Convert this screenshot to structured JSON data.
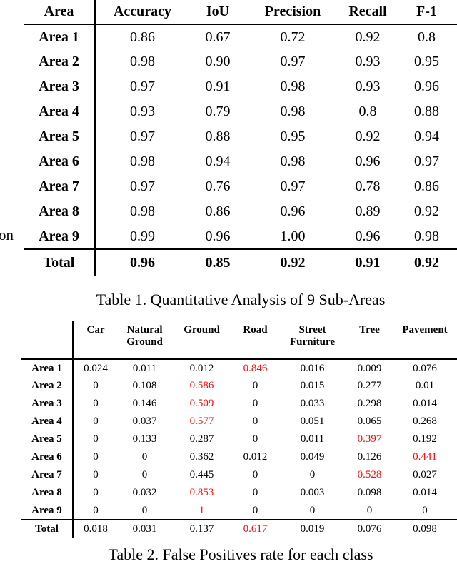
{
  "colors": {
    "text": "#000000",
    "highlight": "#ee1111"
  },
  "fragments": {
    "left_margin_text": "on"
  },
  "table1": {
    "caption": "Table 1. Quantitative Analysis of 9 Sub-Areas",
    "columns": [
      "Area",
      "Accuracy",
      "IoU",
      "Precision",
      "Recall",
      "F-1"
    ],
    "rows": [
      {
        "label": "Area 1",
        "cells": [
          "0.86",
          "0.67",
          "0.72",
          "0.92",
          "0.8"
        ]
      },
      {
        "label": "Area 2",
        "cells": [
          "0.98",
          "0.90",
          "0.97",
          "0.93",
          "0.95"
        ]
      },
      {
        "label": "Area 3",
        "cells": [
          "0.97",
          "0.91",
          "0.98",
          "0.93",
          "0.96"
        ]
      },
      {
        "label": "Area 4",
        "cells": [
          "0.93",
          "0.79",
          "0.98",
          "0.8",
          "0.88"
        ]
      },
      {
        "label": "Area 5",
        "cells": [
          "0.97",
          "0.88",
          "0.95",
          "0.92",
          "0.94"
        ]
      },
      {
        "label": "Area 6",
        "cells": [
          "0.98",
          "0.94",
          "0.98",
          "0.96",
          "0.97"
        ]
      },
      {
        "label": "Area 7",
        "cells": [
          "0.97",
          "0.76",
          "0.97",
          "0.78",
          "0.86"
        ]
      },
      {
        "label": "Area 8",
        "cells": [
          "0.98",
          "0.86",
          "0.96",
          "0.89",
          "0.92"
        ]
      },
      {
        "label": "Area 9",
        "cells": [
          "0.99",
          "0.96",
          "1.00",
          "0.96",
          "0.98"
        ]
      },
      {
        "label": "Total",
        "cells": [
          "0.96",
          "0.85",
          "0.92",
          "0.91",
          "0.92"
        ],
        "total": true
      }
    ]
  },
  "table2": {
    "caption": "Table 2. False Positives rate for each class",
    "columns": [
      "",
      "Car",
      "Natural\nGround",
      "Ground",
      "Road",
      "Street\nFurniture",
      "Tree",
      "Pavement"
    ],
    "rows": [
      {
        "label": "Area 1",
        "cells": [
          "0.024",
          "0.011",
          "0.012",
          "0.846",
          "0.016",
          "0.009",
          "0.076"
        ],
        "red": 3
      },
      {
        "label": "Area 2",
        "cells": [
          "0",
          "0.108",
          "0.586",
          "0",
          "0.015",
          "0.277",
          "0.01"
        ],
        "red": 2
      },
      {
        "label": "Area 3",
        "cells": [
          "0",
          "0.146",
          "0.509",
          "0",
          "0.033",
          "0.298",
          "0.014"
        ],
        "red": 2
      },
      {
        "label": "Area 4",
        "cells": [
          "0",
          "0.037",
          "0.577",
          "0",
          "0.051",
          "0.065",
          "0.268"
        ],
        "red": 2
      },
      {
        "label": "Area 5",
        "cells": [
          "0",
          "0.133",
          "0.287",
          "0",
          "0.011",
          "0.397",
          "0.192"
        ],
        "red": 5
      },
      {
        "label": "Area 6",
        "cells": [
          "0",
          "0",
          "0.362",
          "0.012",
          "0.049",
          "0.126",
          "0.441"
        ],
        "red": 6
      },
      {
        "label": "Area 7",
        "cells": [
          "0",
          "0",
          "0.445",
          "0",
          "0",
          "0.528",
          "0.027"
        ],
        "red": 5
      },
      {
        "label": "Area 8",
        "cells": [
          "0",
          "0.032",
          "0.853",
          "0",
          "0.003",
          "0.098",
          "0.014"
        ],
        "red": 2
      },
      {
        "label": "Area 9",
        "cells": [
          "0",
          "0",
          "1",
          "0",
          "0",
          "0",
          "0"
        ],
        "red": 2
      },
      {
        "label": "Total",
        "cells": [
          "0.018",
          "0.031",
          "0.137",
          "0.617",
          "0.019",
          "0.076",
          "0.098"
        ],
        "red": 3,
        "total": true
      }
    ]
  }
}
